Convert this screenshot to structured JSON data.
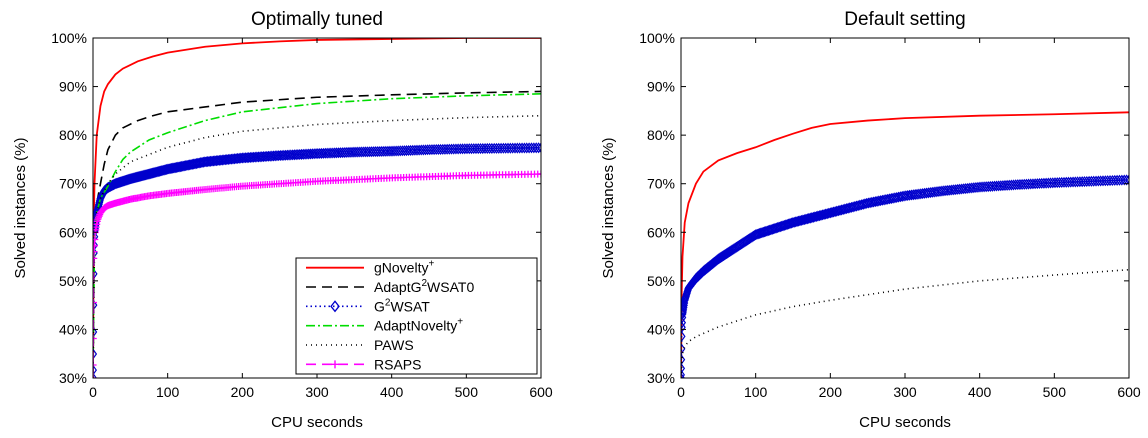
{
  "chart_data": [
    {
      "type": "line",
      "title": "Optimally tuned",
      "xlabel": "CPU seconds",
      "ylabel": "Solved instances (%)",
      "xlim": [
        0,
        600
      ],
      "ylim": [
        30,
        100
      ],
      "x_ticks": [
        0,
        100,
        200,
        300,
        400,
        500,
        600
      ],
      "y_ticks": [
        30,
        40,
        50,
        60,
        70,
        80,
        90,
        100
      ],
      "y_tick_suffix": "%",
      "grid": false,
      "legend": "bottom-right",
      "series": [
        {
          "name": "gNovelty",
          "sup": "+",
          "color": "#ff0000",
          "style": "solid",
          "x": [
            0,
            1,
            2,
            5,
            10,
            15,
            20,
            30,
            40,
            60,
            80,
            100,
            150,
            200,
            250,
            300,
            400,
            500,
            600
          ],
          "y": [
            30,
            62,
            70,
            80,
            86,
            89,
            90.5,
            92.5,
            93.7,
            95.2,
            96.2,
            97,
            98.2,
            98.9,
            99.3,
            99.6,
            99.8,
            100,
            100
          ]
        },
        {
          "name": "AdaptG",
          "sup": "2",
          "name_after": "WSAT0",
          "color": "#000000",
          "style": "dashed",
          "x": [
            0,
            2,
            5,
            10,
            15,
            20,
            30,
            40,
            60,
            80,
            100,
            150,
            200,
            300,
            400,
            500,
            600
          ],
          "y": [
            30,
            62,
            66,
            70,
            74,
            77,
            80,
            81.5,
            83,
            84,
            84.8,
            85.8,
            86.8,
            87.8,
            88.3,
            88.7,
            89
          ]
        },
        {
          "name": "G",
          "sup": "2",
          "name_after": "WSAT",
          "color": "#0000cc",
          "style": "dotted",
          "marker": "diamond",
          "x": [
            0,
            1,
            2,
            5,
            10,
            15,
            20,
            30,
            50,
            75,
            100,
            150,
            200,
            250,
            300,
            350,
            400,
            450,
            500,
            550,
            600
          ],
          "y": [
            30,
            55,
            60,
            64,
            67,
            68.5,
            69.2,
            70,
            71,
            72,
            73,
            74.5,
            75.3,
            75.8,
            76.2,
            76.5,
            76.7,
            77,
            77.2,
            77.3,
            77.4
          ]
        },
        {
          "name": "AdaptNovelty",
          "sup": "+",
          "color": "#00dd00",
          "style": "dashdot",
          "x": [
            0,
            2,
            5,
            10,
            20,
            30,
            40,
            50,
            75,
            100,
            150,
            200,
            300,
            400,
            500,
            600
          ],
          "y": [
            30,
            58,
            64,
            67,
            69.5,
            72.5,
            75,
            76.5,
            79,
            80.5,
            83,
            84.8,
            86.5,
            87.5,
            88.1,
            88.5
          ]
        },
        {
          "name": "PAWS",
          "color": "#000000",
          "style": "fine-dotted",
          "x": [
            0,
            2,
            5,
            10,
            20,
            30,
            50,
            75,
            100,
            150,
            200,
            300,
            400,
            500,
            600
          ],
          "y": [
            30,
            58,
            64,
            67,
            70,
            72,
            74.5,
            76,
            77.5,
            79.5,
            80.8,
            82.2,
            83,
            83.6,
            84
          ]
        },
        {
          "name": "RSAPS",
          "color": "#ff00ff",
          "style": "dashed",
          "marker": "plus",
          "x": [
            0,
            1,
            3,
            6,
            10,
            15,
            20,
            30,
            50,
            75,
            100,
            150,
            200,
            250,
            300,
            400,
            500,
            600
          ],
          "y": [
            30,
            55,
            60,
            62.5,
            64,
            65,
            65.5,
            66,
            66.8,
            67.5,
            68,
            68.8,
            69.5,
            70,
            70.5,
            71.2,
            71.7,
            72
          ]
        }
      ]
    },
    {
      "type": "line",
      "title": "Default setting",
      "xlabel": "CPU seconds",
      "ylabel": "Solved instances (%)",
      "xlim": [
        0,
        600
      ],
      "ylim": [
        30,
        100
      ],
      "x_ticks": [
        0,
        100,
        200,
        300,
        400,
        500,
        600
      ],
      "y_ticks": [
        30,
        40,
        50,
        60,
        70,
        80,
        90,
        100
      ],
      "y_tick_suffix": "%",
      "grid": false,
      "series": [
        {
          "color": "#ff0000",
          "style": "solid",
          "x": [
            0,
            1,
            2,
            5,
            10,
            20,
            30,
            50,
            75,
            100,
            125,
            150,
            175,
            200,
            250,
            300,
            400,
            500,
            600
          ],
          "y": [
            30,
            48,
            55,
            62,
            66,
            70,
            72.5,
            74.8,
            76.3,
            77.5,
            79,
            80.3,
            81.5,
            82.3,
            83,
            83.5,
            84,
            84.3,
            84.7
          ]
        },
        {
          "color": "#0000cc",
          "style": "dotted",
          "marker": "diamond",
          "x": [
            0,
            1,
            2,
            5,
            10,
            20,
            30,
            50,
            75,
            100,
            150,
            200,
            250,
            300,
            350,
            400,
            450,
            500,
            550,
            600
          ],
          "y": [
            30,
            40,
            43,
            46,
            48.5,
            50.5,
            52,
            54.5,
            57,
            59.5,
            62,
            64,
            66,
            67.5,
            68.5,
            69.3,
            69.8,
            70.2,
            70.5,
            70.8
          ]
        },
        {
          "color": "#000000",
          "style": "fine-dotted",
          "x": [
            0,
            2,
            5,
            10,
            20,
            50,
            100,
            150,
            200,
            300,
            400,
            500,
            600
          ],
          "y": [
            30,
            35,
            36.5,
            37.5,
            38.5,
            40.5,
            43,
            44.7,
            46,
            48.3,
            50,
            51.2,
            52.3
          ]
        }
      ]
    }
  ]
}
